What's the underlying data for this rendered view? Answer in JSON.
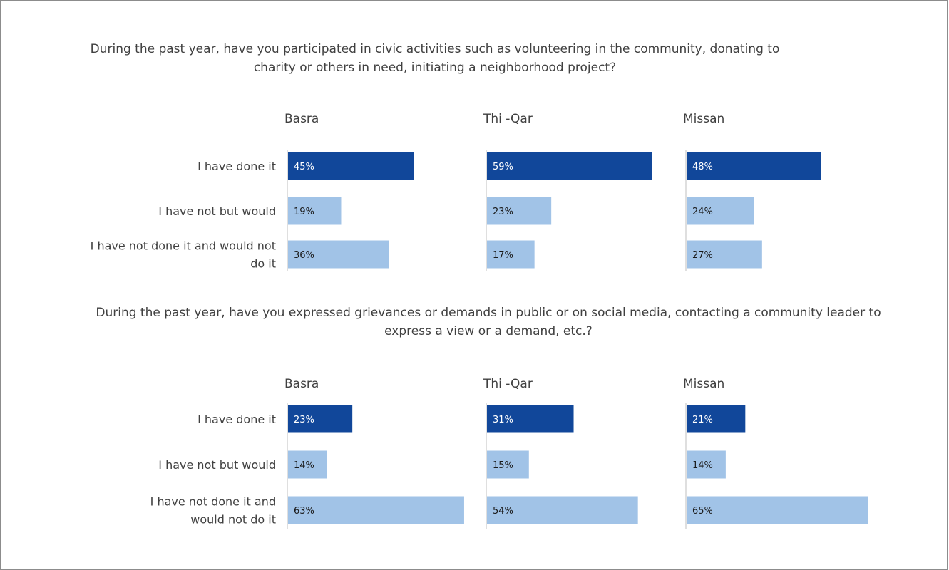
{
  "colors": {
    "done": "#11479a",
    "other": "#a1c3e7",
    "axis": "#bfbfbf",
    "text": "#404040"
  },
  "chart_data": [
    {
      "type": "bar",
      "orientation": "horizontal",
      "title": "During the past year, have you participated in civic activities such as volunteering in the community, donating to charity or others in need, initiating a neighborhood project?",
      "categories": [
        "I have done it",
        "I have not but would",
        "I have not done it and would not do it"
      ],
      "category_lines": [
        [
          "I have done it"
        ],
        [
          "I have not but would"
        ],
        [
          "I have not done it and would not",
          "do it"
        ]
      ],
      "panels": [
        {
          "name": "Basra",
          "values": [
            45,
            19,
            36
          ],
          "labels": [
            "45%",
            "19%",
            "36%"
          ]
        },
        {
          "name": "Thi -Qar",
          "values": [
            59,
            23,
            17
          ],
          "labels": [
            "59%",
            "23%",
            "17%"
          ]
        },
        {
          "name": "Missan",
          "values": [
            48,
            24,
            27
          ],
          "labels": [
            "48%",
            "24%",
            "27%"
          ]
        }
      ],
      "xlim": [
        0,
        100
      ]
    },
    {
      "type": "bar",
      "orientation": "horizontal",
      "title": "During the past year, have you expressed grievances or demands in public or on social media, contacting a community leader to express a view or a demand, etc.?",
      "categories": [
        "I have done it",
        "I have not but would",
        "I have not done it and would not do it"
      ],
      "category_lines": [
        [
          "I have done it"
        ],
        [
          "I have not but would"
        ],
        [
          "I have not done it and",
          "would not do it"
        ]
      ],
      "panels": [
        {
          "name": "Basra",
          "values": [
            23,
            14,
            63
          ],
          "labels": [
            "23%",
            "14%",
            "63%"
          ]
        },
        {
          "name": "Thi -Qar",
          "values": [
            31,
            15,
            54
          ],
          "labels": [
            "31%",
            "15%",
            "54%"
          ]
        },
        {
          "name": "Missan",
          "values": [
            21,
            14,
            65
          ],
          "labels": [
            "21%",
            "14%",
            "65%"
          ]
        }
      ],
      "xlim": [
        0,
        100
      ]
    }
  ]
}
